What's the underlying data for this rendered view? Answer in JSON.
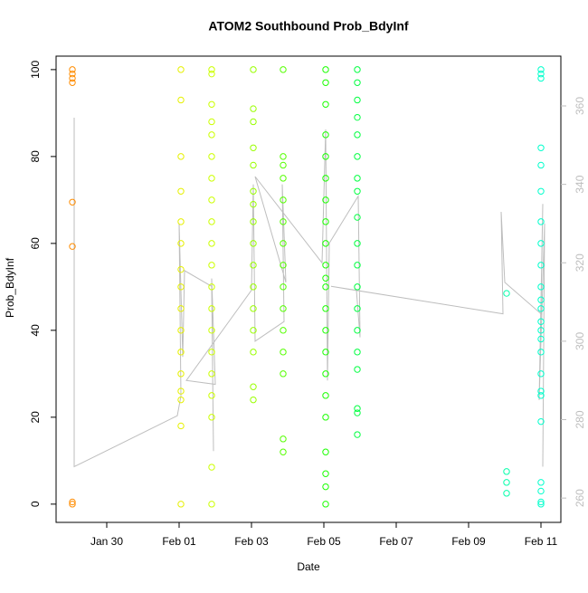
{
  "chart_data": {
    "type": "scatter",
    "title": "ATOM2 Southbound Prob_BdyInf",
    "x_label": "Date",
    "y_label": "Prob_BdyInf",
    "xlim": [
      28.6,
      42.55
    ],
    "xticks": [
      {
        "value": 30,
        "label": "Jan 30"
      },
      {
        "value": 32,
        "label": "Feb 01"
      },
      {
        "value": 34,
        "label": "Feb 03"
      },
      {
        "value": 36,
        "label": "Feb 05"
      },
      {
        "value": 38,
        "label": "Feb 07"
      },
      {
        "value": 40,
        "label": "Feb 09"
      },
      {
        "value": 42,
        "label": "Feb 11"
      }
    ],
    "ylim": [
      -4.2,
      103.1
    ],
    "yticks": [
      0,
      20,
      40,
      60,
      80,
      100
    ],
    "y2lim": [
      253.8,
      372.7
    ],
    "y2ticks": [
      260,
      280,
      300,
      320,
      340,
      360
    ],
    "groups": [
      {
        "x": 29.05,
        "color": "#ff8c00",
        "values": [
          100,
          99,
          97,
          69.5,
          59.3,
          0.5,
          0,
          98
        ]
      },
      {
        "x": 32.05,
        "color": "#e6f000",
        "values": [
          100,
          93,
          80,
          72,
          65,
          60,
          54,
          50,
          45,
          40,
          35,
          30,
          26,
          24,
          18,
          0
        ]
      },
      {
        "x": 32.9,
        "color": "#ccff00",
        "values": [
          100,
          99,
          92,
          88,
          85,
          80,
          75,
          70,
          65,
          60,
          55,
          50,
          45,
          40,
          35,
          30,
          25,
          20,
          8.5,
          0
        ]
      },
      {
        "x": 34.05,
        "color": "#99ff00",
        "values": [
          100,
          91,
          88,
          82,
          78,
          72,
          69,
          65,
          60,
          55,
          50,
          45,
          40,
          35,
          27,
          24
        ]
      },
      {
        "x": 34.875,
        "color": "#55ff00",
        "values": [
          100,
          80,
          78,
          75,
          70,
          65,
          60,
          55,
          50,
          45,
          40,
          35,
          30,
          15,
          12
        ]
      },
      {
        "x": 36.05,
        "color": "#1aff00",
        "values": [
          100,
          97,
          92,
          85,
          80,
          75,
          70,
          65,
          60,
          55,
          52,
          50,
          45,
          40,
          35,
          30,
          25,
          20,
          12,
          7,
          4,
          0
        ]
      },
      {
        "x": 36.925,
        "color": "#00ff40",
        "values": [
          100,
          97,
          93,
          89,
          85,
          80,
          75,
          72,
          66,
          60,
          55,
          50,
          45,
          40,
          35,
          31,
          22,
          21,
          16
        ]
      },
      {
        "x": 41.05,
        "color": "#00ffaa",
        "values": [
          48.5,
          7.5,
          5,
          2.5
        ]
      },
      {
        "x": 42.0,
        "color": "#00ffcc",
        "values": [
          100,
          99,
          98,
          82,
          78,
          72,
          65,
          60,
          55,
          50,
          47,
          45,
          42,
          40,
          38,
          35,
          30,
          26,
          25,
          19,
          5,
          3,
          0.5,
          0
        ]
      }
    ],
    "line": {
      "axis": "y2",
      "color": "#bebebe",
      "x": [
        29.1,
        29.1,
        31.95,
        32.05,
        32.0,
        32.1,
        32.15,
        32.9,
        32.95,
        32.9,
        33.0,
        32.2,
        34.0,
        34.05,
        34.1,
        34.9,
        34.85,
        34.95,
        34.1,
        35.95,
        36.05,
        36.1,
        36.15,
        36.95,
        37.0,
        36.9,
        36.2,
        40.95,
        40.9,
        41.0,
        42.0,
        42.05,
        41.95,
        42.1,
        42.05
      ],
      "y": [
        357,
        268,
        281,
        286,
        330,
        296,
        318,
        314,
        272,
        316,
        289,
        290,
        313,
        340,
        300,
        305,
        340,
        315,
        342,
        320,
        354,
        290,
        325,
        337,
        301,
        313,
        314,
        307,
        333,
        315,
        307,
        335,
        285,
        330,
        268
      ]
    }
  }
}
